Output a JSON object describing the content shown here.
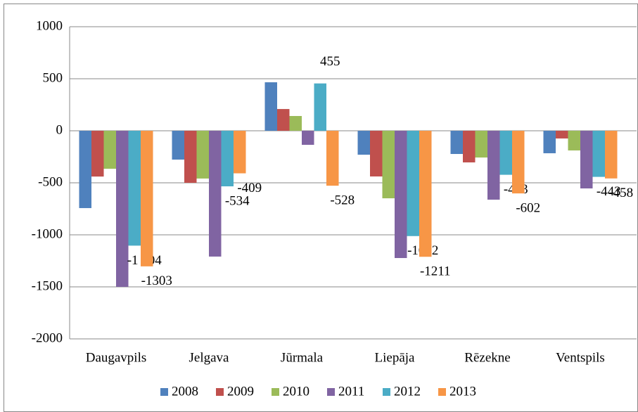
{
  "chart_data": {
    "type": "bar",
    "categories": [
      "Daugavpils",
      "Jelgava",
      "Jūrmala",
      "Liepāja",
      "Rēzekne",
      "Ventspils"
    ],
    "series": [
      {
        "name": "2008",
        "color": "#4f81bd",
        "values": [
          -743,
          -277,
          466,
          -230,
          -223,
          -216
        ]
      },
      {
        "name": "2009",
        "color": "#c0504d",
        "values": [
          -440,
          -500,
          209,
          -439,
          -304,
          -74
        ]
      },
      {
        "name": "2010",
        "color": "#9bbb59",
        "values": [
          -365,
          -459,
          142,
          -649,
          -257,
          -189
        ]
      },
      {
        "name": "2011",
        "color": "#8064a2",
        "values": [
          -1500,
          -1209,
          -135,
          -1223,
          -662,
          -554
        ]
      },
      {
        "name": "2012",
        "color": "#4bacc6",
        "values": [
          -1104,
          -534,
          455,
          -1012,
          -423,
          -443
        ],
        "value_labels": [
          "-1 104",
          "-534",
          "455",
          "-1012",
          "-423",
          "-443"
        ]
      },
      {
        "name": "2013",
        "color": "#f79646",
        "values": [
          -1303,
          -409,
          -528,
          -1211,
          -602,
          -458
        ],
        "value_labels": [
          "-1303",
          "-409",
          "-528",
          "-1211",
          "-602",
          "-458"
        ]
      }
    ],
    "ylim": [
      -2000,
      1000
    ],
    "yticks": [
      -2000,
      -1500,
      -1000,
      -500,
      0,
      500,
      1000
    ],
    "grid": true,
    "legend": "bottom"
  }
}
